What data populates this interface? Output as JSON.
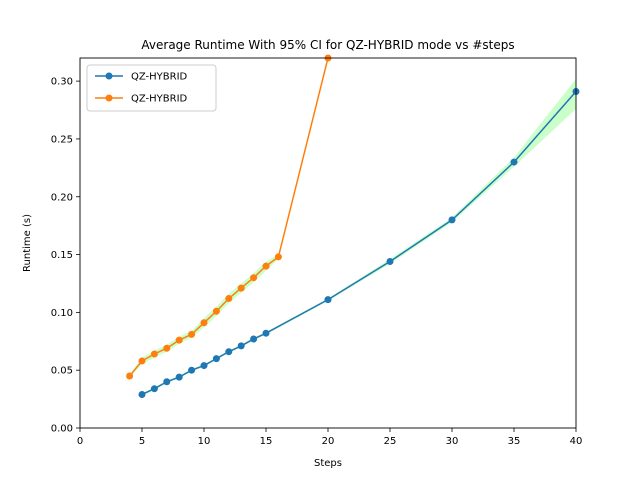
{
  "chart_data": {
    "type": "line",
    "title": "Average Runtime With 95% CI for QZ-HYBRID mode vs #steps",
    "xlabel": "Steps",
    "ylabel": "Runtime (s)",
    "xlim": [
      0,
      40
    ],
    "ylim": [
      0,
      0.32
    ],
    "xticks": [
      0,
      5,
      10,
      15,
      20,
      25,
      30,
      35,
      40
    ],
    "yticks": [
      0.0,
      0.05,
      0.1,
      0.15,
      0.2,
      0.25,
      0.3
    ],
    "x_tick_labels": [
      "0",
      "5",
      "10",
      "15",
      "20",
      "25",
      "30",
      "35",
      "40"
    ],
    "y_tick_labels": [
      "0.00",
      "0.05",
      "0.10",
      "0.15",
      "0.20",
      "0.25",
      "0.30"
    ],
    "grid": false,
    "legend": {
      "position": "top-left"
    },
    "ci_color": "#b3ffb3",
    "series": [
      {
        "name": "QZ-HYBRID",
        "color": "#1f77b4",
        "x": [
          5,
          6,
          7,
          8,
          9,
          10,
          11,
          12,
          13,
          14,
          15,
          20,
          25,
          30,
          35,
          40
        ],
        "y": [
          0.029,
          0.034,
          0.04,
          0.044,
          0.05,
          0.054,
          0.06,
          0.066,
          0.071,
          0.077,
          0.082,
          0.111,
          0.144,
          0.18,
          0.23,
          0.291
        ],
        "ci_low": [
          0.028,
          0.033,
          0.039,
          0.043,
          0.049,
          0.053,
          0.059,
          0.065,
          0.07,
          0.076,
          0.081,
          0.11,
          0.142,
          0.178,
          0.226,
          0.276
        ],
        "ci_high": [
          0.03,
          0.035,
          0.041,
          0.045,
          0.051,
          0.055,
          0.061,
          0.067,
          0.072,
          0.078,
          0.083,
          0.112,
          0.146,
          0.182,
          0.234,
          0.302
        ]
      },
      {
        "name": "QZ-HYBRID",
        "color": "#ff7f0e",
        "x": [
          4,
          5,
          6,
          7,
          8,
          9,
          10,
          11,
          12,
          13,
          14,
          15,
          16,
          20
        ],
        "y": [
          0.045,
          0.058,
          0.064,
          0.069,
          0.076,
          0.081,
          0.091,
          0.101,
          0.112,
          0.121,
          0.13,
          0.14,
          0.148,
          0.32
        ],
        "ci_low": [
          0.044,
          0.055,
          0.061,
          0.066,
          0.073,
          0.078,
          0.087,
          0.097,
          0.108,
          0.117,
          0.126,
          0.136,
          0.146,
          0.32
        ],
        "ci_high": [
          0.046,
          0.061,
          0.067,
          0.072,
          0.079,
          0.084,
          0.095,
          0.105,
          0.116,
          0.125,
          0.134,
          0.144,
          0.15,
          0.32
        ]
      }
    ]
  }
}
